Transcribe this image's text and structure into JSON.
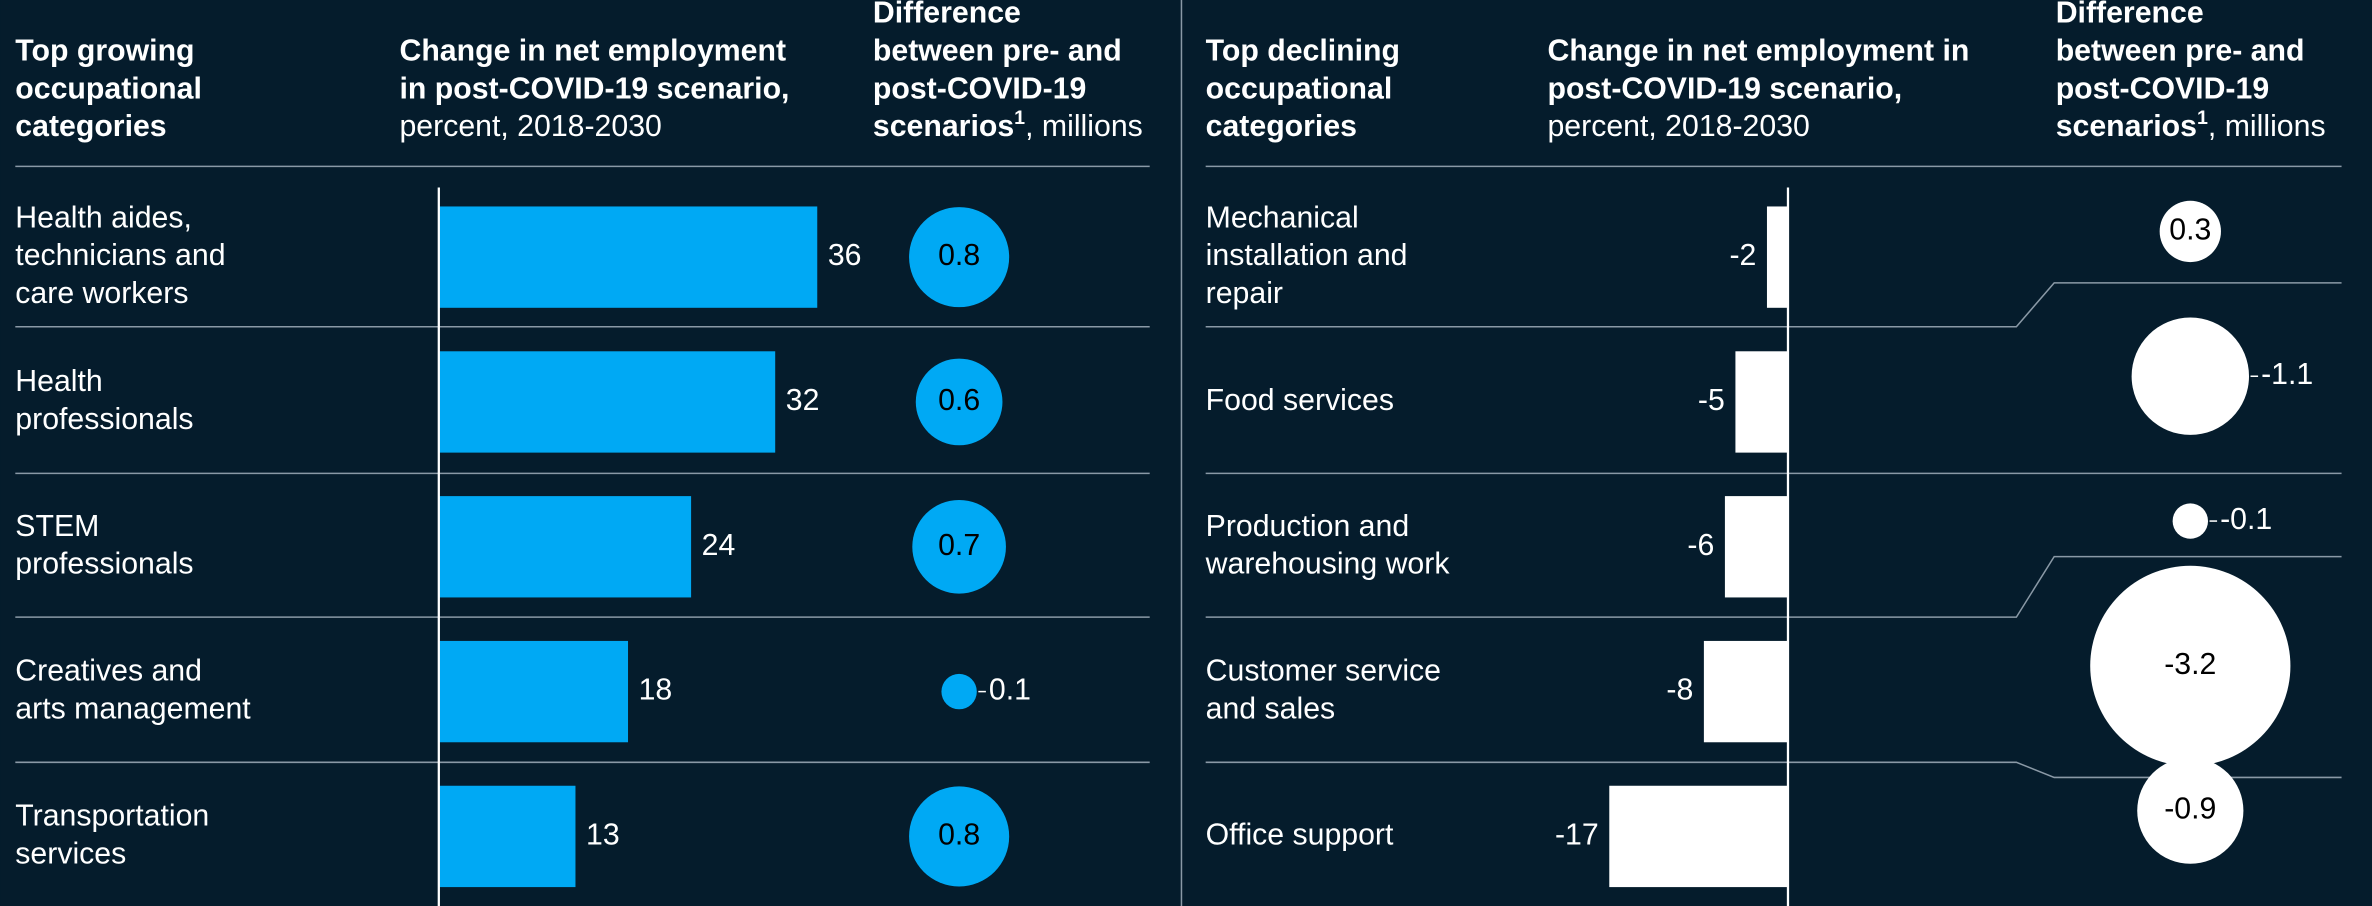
{
  "chart_data": [
    {
      "type": "bar",
      "category_header": [
        "Top growing",
        "occupational",
        "categories"
      ],
      "value_header": {
        "bold": [
          "Change in net employment",
          "in post-COVID-19 scenario,"
        ],
        "normal": "percent, 2018-2030"
      },
      "bubble_header": {
        "bold": [
          "Difference",
          "between pre- and",
          "post-COVID-19",
          "scenarios"
        ],
        "sup": "1",
        "normal": ", millions"
      },
      "categories": [
        [
          "Health aides,",
          "technicians and",
          "care workers"
        ],
        [
          "Health",
          "professionals"
        ],
        [
          "STEM",
          "professionals"
        ],
        [
          "Creatives and",
          "arts management"
        ],
        [
          "Transportation",
          "services"
        ]
      ],
      "values": [
        36,
        32,
        24,
        18,
        13
      ],
      "xlim": [
        0,
        40
      ],
      "color": "#00a9f4",
      "bubble_values": [
        0.8,
        0.6,
        0.7,
        0.1,
        0.8
      ],
      "bubble_color": "#00a9f4",
      "bubble_label_outside": [
        false,
        false,
        false,
        true,
        false
      ]
    },
    {
      "type": "bar",
      "category_header": [
        "Top declining",
        "occupational",
        "categories"
      ],
      "value_header": {
        "bold": [
          "Change in net employment in",
          "post-COVID-19 scenario,"
        ],
        "normal": "percent, 2018-2030"
      },
      "bubble_header": {
        "bold": [
          "Difference",
          "between pre- and",
          "post-COVID-19",
          "scenarios"
        ],
        "sup": "1",
        "normal": ", millions"
      },
      "categories": [
        [
          "Mechanical",
          "installation and",
          "repair"
        ],
        [
          "Food services"
        ],
        [
          "Production and",
          "warehousing work"
        ],
        [
          "Customer service",
          "and sales"
        ],
        [
          "Office support"
        ]
      ],
      "values": [
        -2,
        -5,
        -6,
        -8,
        -17
      ],
      "xlim": [
        -20,
        0
      ],
      "color": "#ffffff",
      "bubble_values": [
        0.3,
        -1.1,
        -0.1,
        -3.2,
        -0.9
      ],
      "bubble_color": "#ffffff",
      "bubble_label_outside": [
        false,
        true,
        true,
        false,
        false
      ]
    }
  ]
}
